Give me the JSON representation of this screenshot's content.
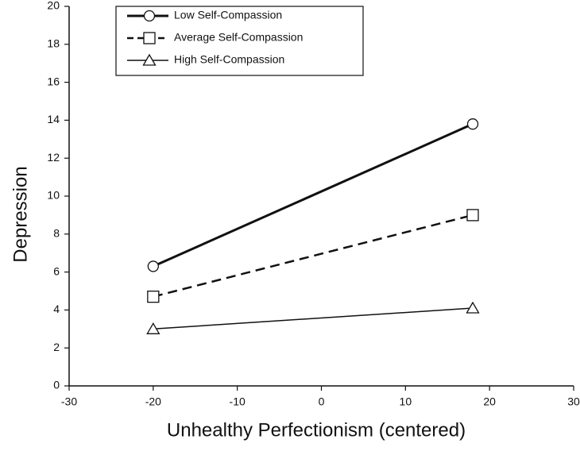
{
  "chart_data": {
    "type": "line",
    "xlabel": "Unhealthy Perfectionism (centered)",
    "ylabel": "Depression",
    "x": [
      -20,
      18
    ],
    "series": [
      {
        "name": "Low Self-Compassion",
        "color": "#111111",
        "line_style": "solid",
        "line_width": 3,
        "marker": "circle",
        "values": [
          6.3,
          13.8
        ]
      },
      {
        "name": "Average Self-Compassion",
        "color": "#111111",
        "line_style": "dashed",
        "line_width": 2.5,
        "marker": "square",
        "values": [
          4.7,
          9.0
        ]
      },
      {
        "name": "High Self-Compassion",
        "color": "#111111",
        "line_style": "solid",
        "line_width": 1.5,
        "marker": "triangle",
        "values": [
          3.0,
          4.1
        ]
      }
    ],
    "xlim": [
      -30,
      30
    ],
    "xticks": [
      -30,
      -20,
      -10,
      0,
      10,
      20,
      30
    ],
    "ylim": [
      0,
      20
    ],
    "yticks": [
      0,
      2,
      4,
      6,
      8,
      10,
      12,
      14,
      16,
      18,
      20
    ],
    "grid": false,
    "legend": "top"
  }
}
